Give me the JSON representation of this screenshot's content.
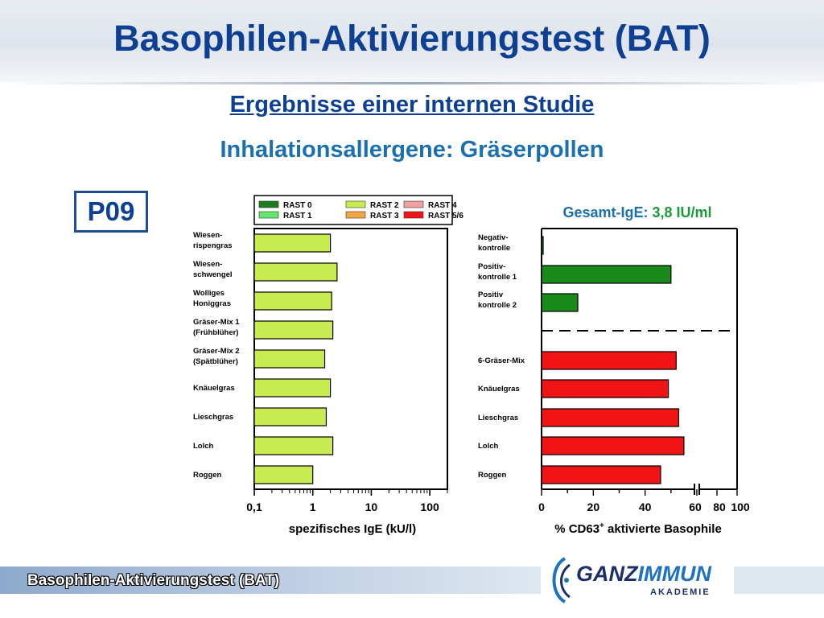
{
  "header": {
    "title": "Basophilen-Aktivierungstest (BAT)",
    "subtitle": "Ergebnisse einer internen Studie",
    "subtitle2": "Inhalationsallergene: Gräserpollen"
  },
  "patient_label": "P09",
  "gesamt_ige": {
    "label": "Gesamt-IgE:",
    "value": "3,8 IU/ml"
  },
  "footer": {
    "text": "Basophilen-Aktivierungstest (BAT)",
    "logo_ganz": "GANZ",
    "logo_immun": "IMMUN",
    "logo_sub": "AKADEMIE"
  },
  "colors": {
    "rast0": "#1e7a1e",
    "rast1": "#5fe86a",
    "rast2": "#c8ec50",
    "rast3": "#f5a540",
    "rast4": "#f2a0a0",
    "rast56": "#f01414",
    "control_green": "#1a8a1a",
    "allergen_red": "#f01414"
  },
  "chart_data": [
    {
      "type": "bar",
      "orientation": "horizontal",
      "scale": "log",
      "categories": [
        [
          "Wiesen-",
          "rispengras"
        ],
        [
          "Wiesen-",
          "schwengel"
        ],
        [
          "Wolliges",
          "Honiggras"
        ],
        [
          "Gräser-Mix 1",
          "(Frühblüher)"
        ],
        [
          "Gräser-Mix 2",
          "(Spätblüher)"
        ],
        [
          "Knäuelgras"
        ],
        [
          "Lieschgras"
        ],
        [
          "Lolch"
        ],
        [
          "Roggen"
        ]
      ],
      "values": [
        2.0,
        2.6,
        2.1,
        2.2,
        1.6,
        2.0,
        1.7,
        2.2,
        1.0
      ],
      "rast_class": [
        "RAST 2",
        "RAST 2",
        "RAST 2",
        "RAST 2",
        "RAST 2",
        "RAST 2",
        "RAST 2",
        "RAST 2",
        "RAST 2"
      ],
      "xlabel": "spezifisches IgE (kU/l)",
      "xticks": [
        0.1,
        1,
        10,
        100
      ],
      "xtick_labels": [
        "0,1",
        "1",
        "10",
        "100"
      ],
      "xlim": [
        0.1,
        200
      ],
      "legend": {
        "placement": "top",
        "entries": [
          {
            "label": "RAST 0",
            "color_key": "rast0"
          },
          {
            "label": "RAST 1",
            "color_key": "rast1"
          },
          {
            "label": "RAST 2",
            "color_key": "rast2"
          },
          {
            "label": "RAST 3",
            "color_key": "rast3"
          },
          {
            "label": "RAST 4",
            "color_key": "rast4"
          },
          {
            "label": "RAST 5/6",
            "color_key": "rast56"
          }
        ]
      }
    },
    {
      "type": "bar",
      "orientation": "horizontal",
      "categories": [
        [
          "Negativ-",
          "kontrolle"
        ],
        [
          "Positiv-",
          "kontrolle 1"
        ],
        [
          "Positiv",
          "kontrolle 2"
        ],
        [
          "6-Gräser-Mix"
        ],
        [
          "Knäuelgras"
        ],
        [
          "Lieschgras"
        ],
        [
          "Lolch"
        ],
        [
          "Roggen"
        ]
      ],
      "values": [
        0.5,
        50,
        14,
        52,
        49,
        53,
        55,
        46
      ],
      "bar_color_keys": [
        "control_green",
        "control_green",
        "control_green",
        "allergen_red",
        "allergen_red",
        "allergen_red",
        "allergen_red",
        "allergen_red"
      ],
      "xlabel_main": "% CD63",
      "xlabel_sup": "+",
      "xlabel_rest": " aktivierte Basophile",
      "xticks": [
        0,
        20,
        40,
        60,
        80,
        100
      ],
      "xtick_labels": [
        "0",
        "20",
        "40",
        "60",
        "80",
        "100"
      ],
      "xlim": [
        0,
        100
      ],
      "axis_break": true,
      "separator_after_index": 2
    }
  ]
}
